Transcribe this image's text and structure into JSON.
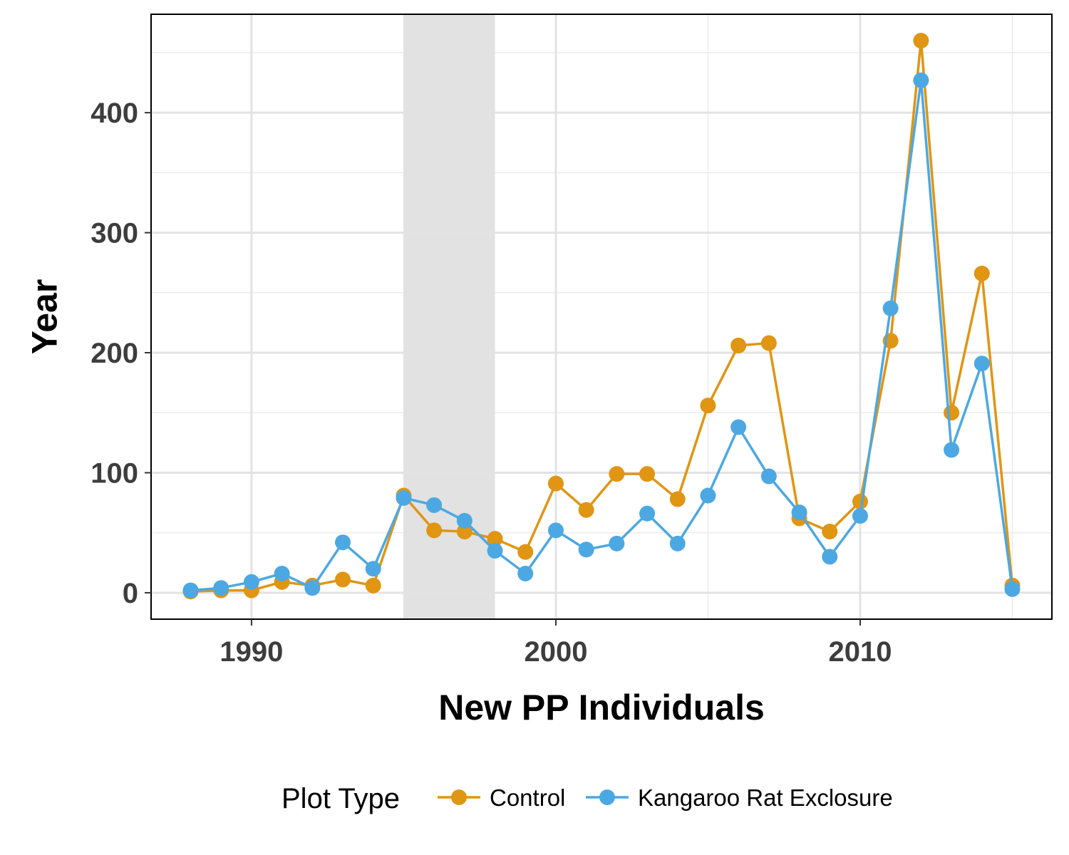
{
  "chart_data": {
    "type": "line",
    "title": "",
    "xlabel": "New PP Individuals",
    "ylabel": "Year",
    "xlim": [
      1986.7,
      2016.3
    ],
    "ylim": [
      -22,
      482
    ],
    "x_ticks": [
      1990,
      2000,
      2010
    ],
    "x_tick_labels": [
      "1990",
      "2000",
      "2010"
    ],
    "y_ticks": [
      0,
      100,
      200,
      300,
      400
    ],
    "y_tick_labels": [
      "0",
      "100",
      "200",
      "300",
      "400"
    ],
    "grid": true,
    "shaded_region": {
      "x_start": 1995,
      "x_end": 1998,
      "color": "#e0e0e0"
    },
    "legend": {
      "title": "Plot Type",
      "position": "bottom"
    },
    "x": [
      1988,
      1989,
      1990,
      1991,
      1992,
      1993,
      1994,
      1995,
      1996,
      1997,
      1998,
      1999,
      2000,
      2001,
      2002,
      2003,
      2004,
      2005,
      2006,
      2007,
      2008,
      2009,
      2010,
      2011,
      2012,
      2013,
      2014,
      2015
    ],
    "series": [
      {
        "name": "Control",
        "color": "#E09513",
        "values": [
          1,
          2,
          2,
          9,
          6,
          11,
          6,
          81,
          52,
          51,
          45,
          34,
          91,
          69,
          99,
          99,
          78,
          156,
          206,
          208,
          62,
          51,
          76,
          210,
          460,
          150,
          266,
          6
        ]
      },
      {
        "name": "Kangaroo Rat Exclosure",
        "color": "#4CA8E3",
        "values": [
          2,
          4,
          9,
          16,
          4,
          42,
          20,
          79,
          73,
          60,
          35,
          16,
          52,
          36,
          41,
          66,
          41,
          81,
          138,
          97,
          67,
          30,
          64,
          237,
          427,
          119,
          191,
          3
        ]
      }
    ]
  }
}
